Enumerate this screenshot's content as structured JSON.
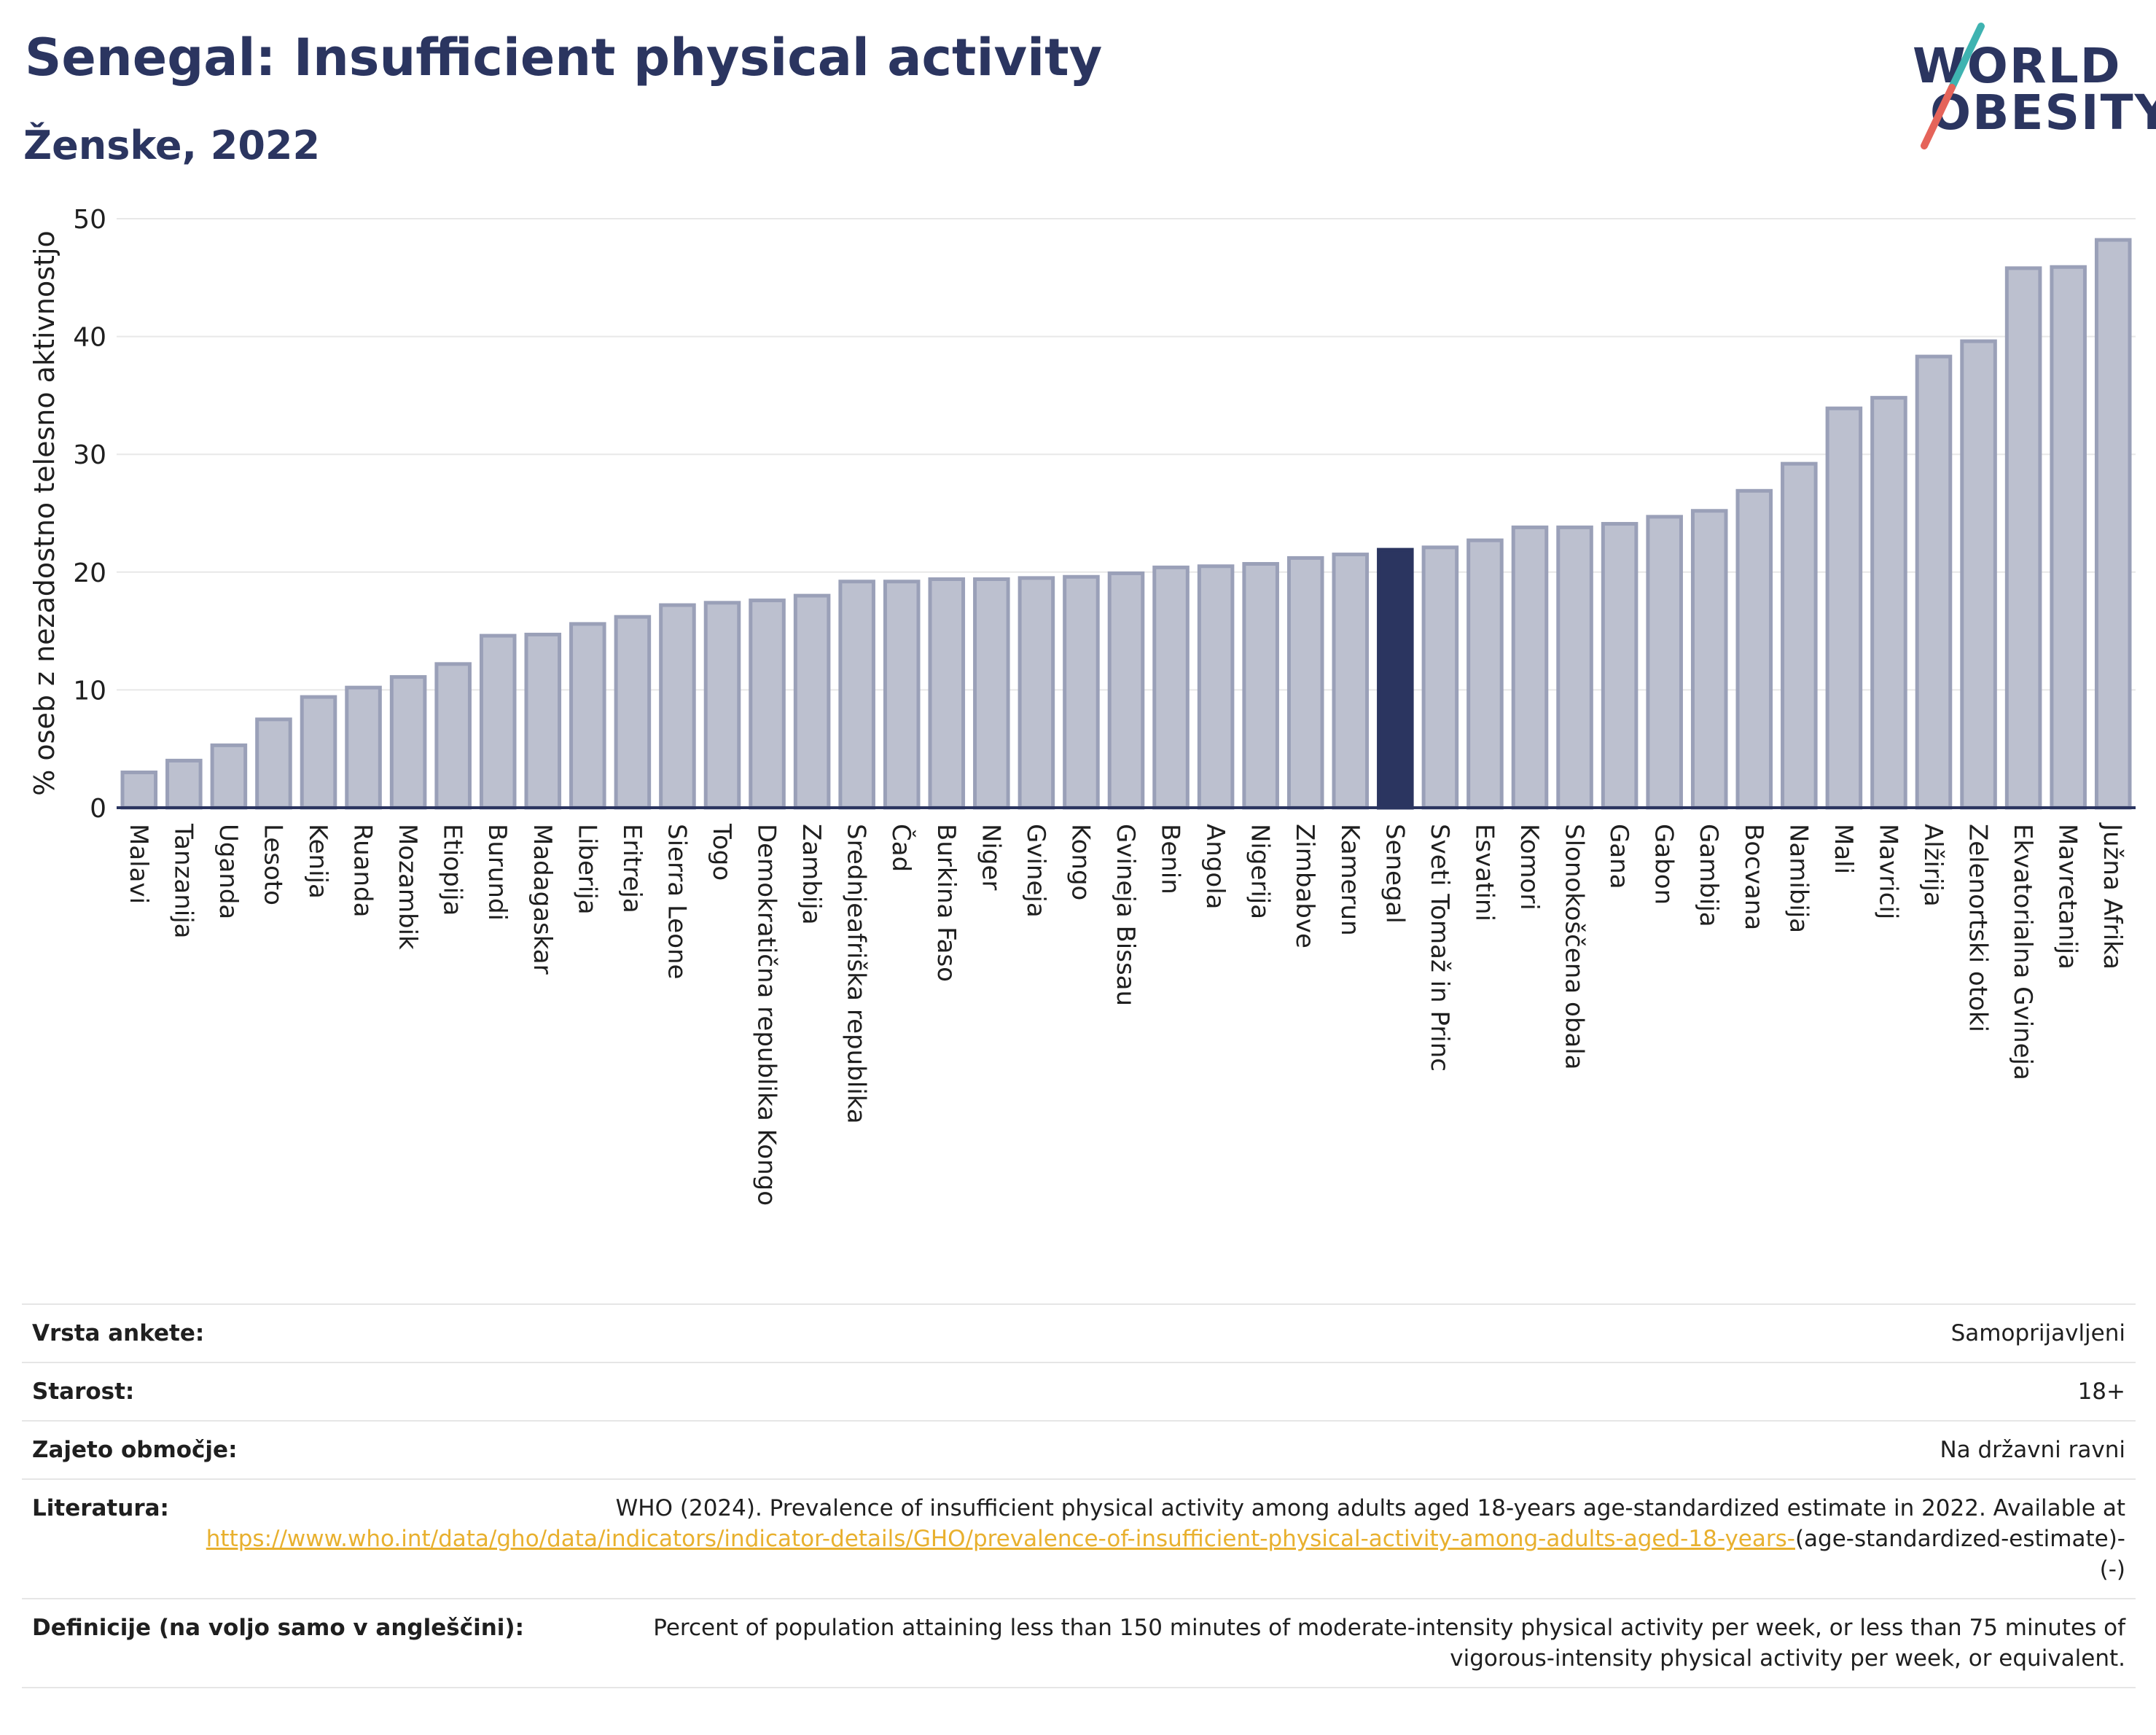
{
  "title": "Senegal: Insufficient physical activity",
  "subtitle": "Ženske, 2022",
  "logo": {
    "line1": "WORLD",
    "line2": "OBESITY",
    "colors": {
      "text": "#2b3560",
      "slash_teal": "#3fb3b1",
      "slash_red": "#e5645a"
    }
  },
  "colors": {
    "bar": "#bcc0cf",
    "bar_border": "#9aa0b8",
    "highlight": "#2b3560",
    "grid": "#e8e8e8",
    "axis": "#2b3560",
    "title": "#2b3560",
    "link": "#e8b02e"
  },
  "chart_data": {
    "type": "bar",
    "ylabel": "% oseb z nezadostno telesno aktivnostjo",
    "ylim": [
      0,
      50
    ],
    "yticks": [
      0,
      10,
      20,
      30,
      40,
      50
    ],
    "grid": true,
    "highlight": "Senegal",
    "categories": [
      "Malavi",
      "Tanzanija",
      "Uganda",
      "Lesoto",
      "Kenija",
      "Ruanda",
      "Mozambik",
      "Etiopija",
      "Burundi",
      "Madagaskar",
      "Liberija",
      "Eritreja",
      "Sierra Leone",
      "Togo",
      "Demokratična republika Kongo",
      "Zambija",
      "Srednjeafriška republika",
      "Čad",
      "Burkina Faso",
      "Niger",
      "Gvineja",
      "Kongo",
      "Gvineja Bissau",
      "Benin",
      "Angola",
      "Nigerija",
      "Zimbabve",
      "Kamerun",
      "Senegal",
      "Sveti Tomaž in Princ",
      "Esvatini",
      "Komori",
      "Slonokoščena obala",
      "Gana",
      "Gabon",
      "Gambija",
      "Bocvana",
      "Namibija",
      "Mali",
      "Mavricij",
      "Alžirija",
      "Zelenortski otoki",
      "Ekvatorialna Gvineja",
      "Mavretanija",
      "Južna Afrika"
    ],
    "values": [
      3.0,
      4.0,
      5.3,
      7.5,
      9.4,
      10.2,
      11.1,
      12.2,
      14.6,
      14.7,
      15.6,
      16.2,
      17.2,
      17.4,
      17.6,
      18.0,
      19.2,
      19.2,
      19.4,
      19.4,
      19.5,
      19.6,
      19.9,
      20.4,
      20.5,
      20.7,
      21.2,
      21.5,
      21.9,
      22.1,
      22.7,
      23.8,
      23.8,
      24.1,
      24.7,
      25.2,
      26.9,
      29.2,
      33.9,
      34.8,
      38.3,
      39.6,
      45.8,
      45.9,
      48.2
    ]
  },
  "meta": {
    "survey_type": {
      "label": "Vrsta ankete:",
      "value": "Samoprijavljeni"
    },
    "age": {
      "label": "Starost:",
      "value": "18+"
    },
    "coverage": {
      "label": "Zajeto območje:",
      "value": "Na državni ravni"
    },
    "reference": {
      "label": "Literatura:",
      "text": "WHO (2024). Prevalence of insufficient physical activity among adults aged 18-years age-standardized estimate in 2022. Available at",
      "link": "https://www.who.int/data/gho/data/indicators/indicator-details/GHO/prevalence-of-insufficient-physical-activity-among-adults-aged-18-years-",
      "suffix": "(age-standardized-estimate)-(-)"
    },
    "definition": {
      "label": "Definicije (na voljo samo v angleščini):",
      "value": "Percent of population attaining less than 150 minutes of moderate-intensity physical activity per week, or less than 75 minutes of vigorous-intensity physical activity per week, or equivalent."
    }
  }
}
